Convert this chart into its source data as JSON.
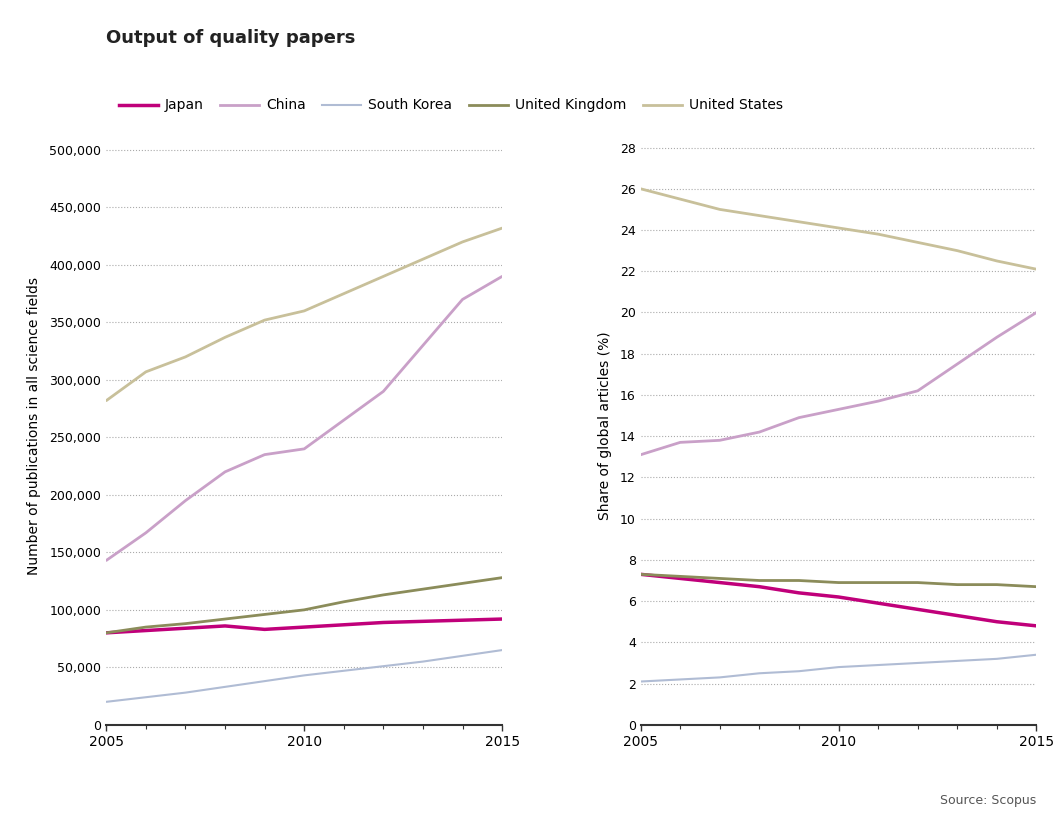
{
  "title": "Output of quality papers",
  "source": "Source: Scopus",
  "years": [
    2005,
    2006,
    2007,
    2008,
    2009,
    2010,
    2011,
    2012,
    2013,
    2014,
    2015
  ],
  "countries": [
    "Japan",
    "China",
    "South Korea",
    "United Kingdom",
    "United States"
  ],
  "colors": {
    "Japan": "#c0007a",
    "China": "#c9a0c8",
    "South Korea": "#b0bcd4",
    "United Kingdom": "#8b8c5a",
    "United States": "#c8c09a"
  },
  "linewidths": {
    "Japan": 2.5,
    "China": 2.0,
    "South Korea": 1.5,
    "United Kingdom": 2.0,
    "United States": 2.0
  },
  "left_data": {
    "Japan": [
      80000,
      82000,
      84000,
      86000,
      83000,
      85000,
      87000,
      89000,
      90000,
      91000,
      92000
    ],
    "China": [
      143000,
      167000,
      195000,
      220000,
      235000,
      240000,
      265000,
      290000,
      330000,
      370000,
      390000
    ],
    "South Korea": [
      20000,
      24000,
      28000,
      33000,
      38000,
      43000,
      47000,
      51000,
      55000,
      60000,
      65000
    ],
    "United Kingdom": [
      80000,
      85000,
      88000,
      92000,
      96000,
      100000,
      107000,
      113000,
      118000,
      123000,
      128000
    ],
    "United States": [
      282000,
      307000,
      320000,
      337000,
      352000,
      360000,
      375000,
      390000,
      405000,
      420000,
      432000
    ]
  },
  "right_data": {
    "Japan": [
      7.3,
      7.1,
      6.9,
      6.7,
      6.4,
      6.2,
      5.9,
      5.6,
      5.3,
      5.0,
      4.8
    ],
    "China": [
      13.1,
      13.7,
      13.8,
      14.2,
      14.9,
      15.3,
      15.7,
      16.2,
      17.5,
      18.8,
      20.0
    ],
    "South Korea": [
      2.1,
      2.2,
      2.3,
      2.5,
      2.6,
      2.8,
      2.9,
      3.0,
      3.1,
      3.2,
      3.4
    ],
    "United Kingdom": [
      7.3,
      7.2,
      7.1,
      7.0,
      7.0,
      6.9,
      6.9,
      6.9,
      6.8,
      6.8,
      6.7
    ],
    "United States": [
      26.0,
      25.5,
      25.0,
      24.7,
      24.4,
      24.1,
      23.8,
      23.4,
      23.0,
      22.5,
      22.1
    ]
  },
  "left_ylim": [
    0,
    520000
  ],
  "left_yticks": [
    0,
    50000,
    100000,
    150000,
    200000,
    250000,
    300000,
    350000,
    400000,
    450000,
    500000
  ],
  "left_yticklabels": [
    "0",
    "50,000",
    "100,000",
    "150,000",
    "200,000",
    "250,000",
    "300,000",
    "350,000",
    "400,000",
    "450,000",
    "500,000"
  ],
  "right_ylim": [
    0,
    29
  ],
  "right_yticks": [
    0,
    2,
    4,
    6,
    8,
    10,
    12,
    14,
    16,
    18,
    20,
    22,
    24,
    26,
    28
  ],
  "right_yticklabels": [
    "0",
    "2",
    "4",
    "6",
    "8",
    "10",
    "12",
    "14",
    "16",
    "18",
    "20",
    "22",
    "24",
    "26",
    "28"
  ],
  "left_ylabel": "Number of publications in all science fields",
  "right_ylabel": "Share of global articles (%)",
  "xlim": [
    2005,
    2015
  ],
  "xticks": [
    2005,
    2010,
    2015
  ],
  "background_color": "#ffffff",
  "legend_order": [
    "Japan",
    "China",
    "South Korea",
    "United Kingdom",
    "United States"
  ]
}
